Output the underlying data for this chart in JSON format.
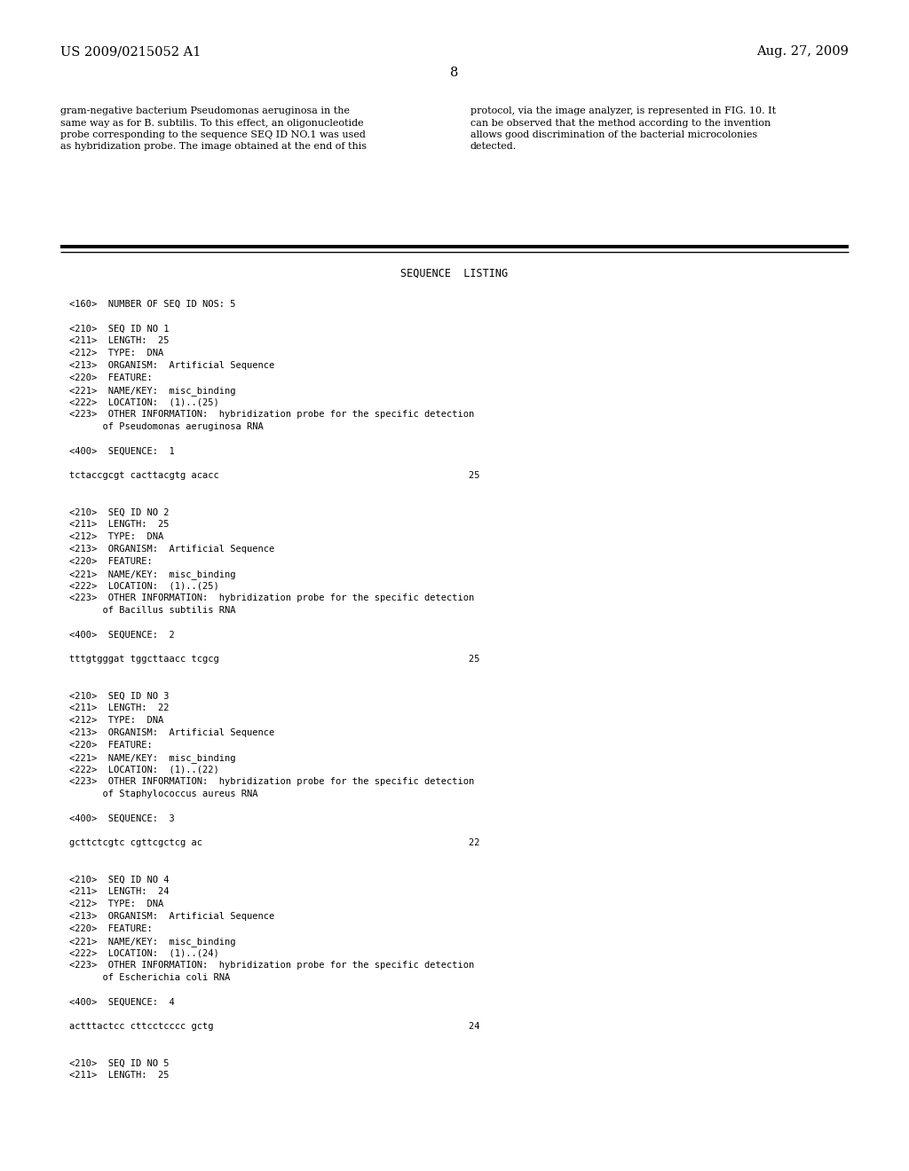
{
  "header_left": "US 2009/0215052 A1",
  "header_right": "Aug. 27, 2009",
  "page_number": "8",
  "body_text_left": "gram-negative bacterium Pseudomonas aeruginosa in the\nsame way as for B. subtilis. To this effect, an oligonucleotide\nprobe corresponding to the sequence SEQ ID NO.1 was used\nas hybridization probe. The image obtained at the end of this",
  "body_text_right": "protocol, via the image analyzer, is represented in FIG. 10. It\ncan be observed that the method according to the invention\nallows good discrimination of the bacterial microcolonies\ndetected.",
  "section_title": "SEQUENCE  LISTING",
  "sequence_content": "<160>  NUMBER OF SEQ ID NOS: 5\n\n<210>  SEQ ID NO 1\n<211>  LENGTH:  25\n<212>  TYPE:  DNA\n<213>  ORGANISM:  Artificial Sequence\n<220>  FEATURE:\n<221>  NAME/KEY:  misc_binding\n<222>  LOCATION:  (1)..(25)\n<223>  OTHER INFORMATION:  hybridization probe for the specific detection\n      of Pseudomonas aeruginosa RNA\n\n<400>  SEQUENCE:  1\n\ntctaccgcgt cacttacgtg acacc                                             25\n\n\n<210>  SEQ ID NO 2\n<211>  LENGTH:  25\n<212>  TYPE:  DNA\n<213>  ORGANISM:  Artificial Sequence\n<220>  FEATURE:\n<221>  NAME/KEY:  misc_binding\n<222>  LOCATION:  (1)..(25)\n<223>  OTHER INFORMATION:  hybridization probe for the specific detection\n      of Bacillus subtilis RNA\n\n<400>  SEQUENCE:  2\n\ntttgtgggat tggcttaacc tcgcg                                             25\n\n\n<210>  SEQ ID NO 3\n<211>  LENGTH:  22\n<212>  TYPE:  DNA\n<213>  ORGANISM:  Artificial Sequence\n<220>  FEATURE:\n<221>  NAME/KEY:  misc_binding\n<222>  LOCATION:  (1)..(22)\n<223>  OTHER INFORMATION:  hybridization probe for the specific detection\n      of Staphylococcus aureus RNA\n\n<400>  SEQUENCE:  3\n\ngcttctcgtc cgttcgctcg ac                                                22\n\n\n<210>  SEQ ID NO 4\n<211>  LENGTH:  24\n<212>  TYPE:  DNA\n<213>  ORGANISM:  Artificial Sequence\n<220>  FEATURE:\n<221>  NAME/KEY:  misc_binding\n<222>  LOCATION:  (1)..(24)\n<223>  OTHER INFORMATION:  hybridization probe for the specific detection\n      of Escherichia coli RNA\n\n<400>  SEQUENCE:  4\n\nactttactcc cttcctcccc gctg                                              24\n\n\n<210>  SEQ ID NO 5\n<211>  LENGTH:  25",
  "bg_color": "#ffffff",
  "text_color": "#000000",
  "font_size_header": 10.5,
  "font_size_body": 8.0,
  "font_size_page_num": 10.5,
  "font_size_section": 8.5,
  "font_size_seq": 7.5
}
